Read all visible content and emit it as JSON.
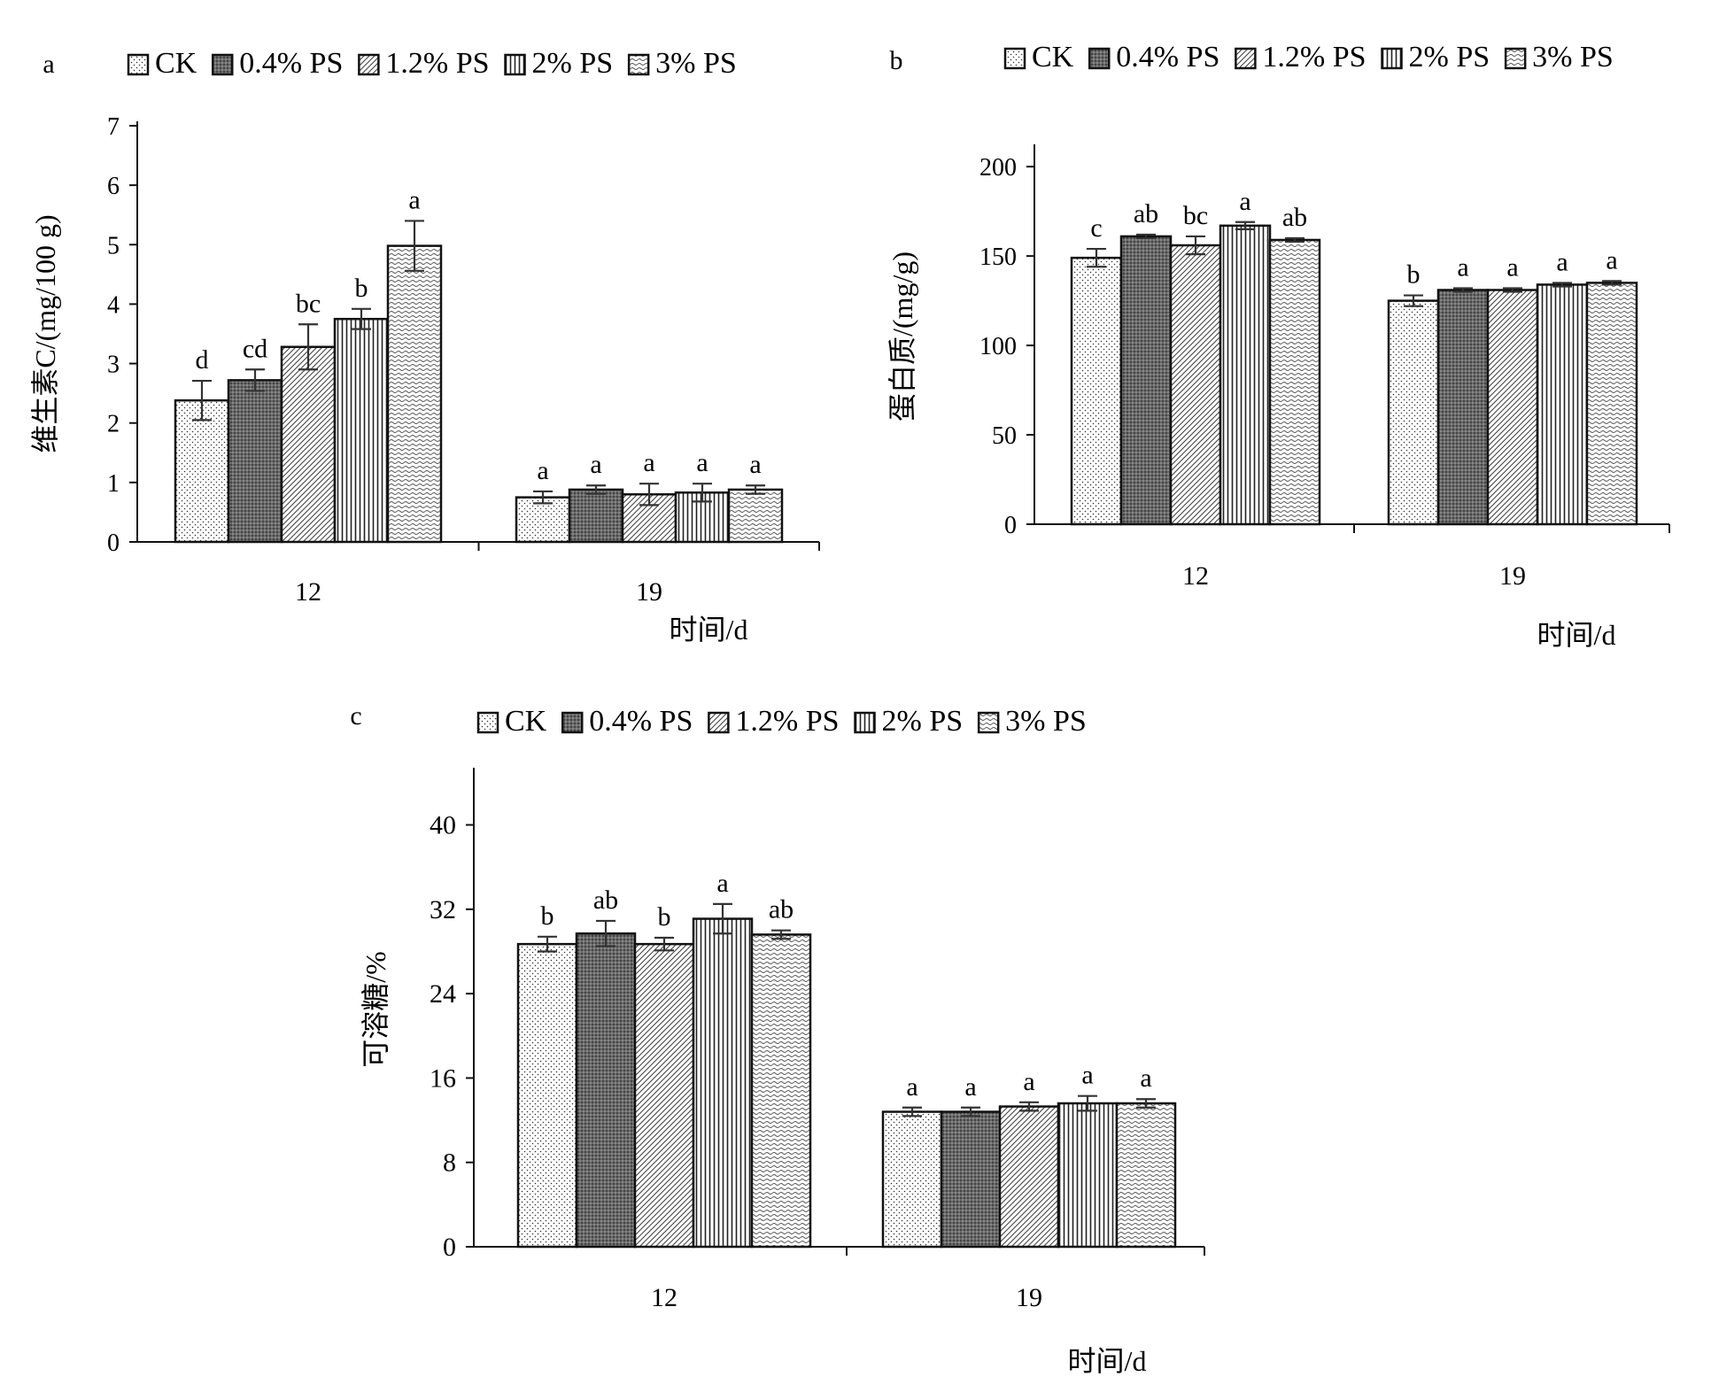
{
  "legend": [
    "CK",
    "0.4% PS",
    "1.2% PS",
    "2% PS",
    "3% PS"
  ],
  "chart_data": [
    {
      "type": "bar",
      "panel_label": "a",
      "title": "",
      "xlabel": "时间/d",
      "ylabel": "维生素C/(mg/100 g)",
      "categories": [
        "12",
        "19"
      ],
      "ylim": [
        0,
        7
      ],
      "yticks": [
        0,
        1,
        2,
        3,
        4,
        5,
        6,
        7
      ],
      "series": [
        {
          "name": "CK",
          "values": [
            2.38,
            0.75
          ],
          "errors": [
            0.33,
            0.1
          ],
          "letters": [
            "d",
            "a"
          ]
        },
        {
          "name": "0.4% PS",
          "values": [
            2.72,
            0.88
          ],
          "errors": [
            0.18,
            0.07
          ],
          "letters": [
            "cd",
            "a"
          ]
        },
        {
          "name": "1.2% PS",
          "values": [
            3.28,
            0.8
          ],
          "errors": [
            0.38,
            0.18
          ],
          "letters": [
            "bc",
            "a"
          ]
        },
        {
          "name": "2% PS",
          "values": [
            3.75,
            0.83
          ],
          "errors": [
            0.17,
            0.15
          ],
          "letters": [
            "b",
            "a"
          ]
        },
        {
          "name": "3% PS",
          "values": [
            4.98,
            0.88
          ],
          "errors": [
            0.42,
            0.07
          ],
          "letters": [
            "a",
            "a"
          ]
        }
      ]
    },
    {
      "type": "bar",
      "panel_label": "b",
      "title": "",
      "xlabel": "时间/d",
      "ylabel": "蛋白质/(mg/g)",
      "categories": [
        "12",
        "19"
      ],
      "ylim": [
        0,
        210
      ],
      "yticks": [
        0,
        50,
        100,
        150,
        200
      ],
      "series": [
        {
          "name": "CK",
          "values": [
            149,
            125
          ],
          "errors": [
            5,
            3
          ],
          "letters": [
            "c",
            "b"
          ]
        },
        {
          "name": "0.4% PS",
          "values": [
            161,
            131
          ],
          "errors": [
            1,
            1
          ],
          "letters": [
            "ab",
            "a"
          ]
        },
        {
          "name": "1.2% PS",
          "values": [
            156,
            131
          ],
          "errors": [
            5,
            1
          ],
          "letters": [
            "bc",
            "a"
          ]
        },
        {
          "name": "2% PS",
          "values": [
            167,
            134
          ],
          "errors": [
            2,
            1
          ],
          "letters": [
            "a",
            "a"
          ]
        },
        {
          "name": "3% PS",
          "values": [
            159,
            135
          ],
          "errors": [
            1,
            1
          ],
          "letters": [
            "ab",
            "a"
          ]
        }
      ]
    },
    {
      "type": "bar",
      "panel_label": "c",
      "title": "",
      "xlabel": "时间/d",
      "ylabel": "可溶糖/%",
      "categories": [
        "12",
        "19"
      ],
      "ylim": [
        0,
        45
      ],
      "yticks": [
        0,
        8,
        16,
        24,
        32,
        40
      ],
      "series": [
        {
          "name": "CK",
          "values": [
            28.7,
            12.8
          ],
          "errors": [
            0.7,
            0.4
          ],
          "letters": [
            "b",
            "a"
          ]
        },
        {
          "name": "0.4% PS",
          "values": [
            29.7,
            12.8
          ],
          "errors": [
            1.2,
            0.4
          ],
          "letters": [
            "ab",
            "a"
          ]
        },
        {
          "name": "1.2% PS",
          "values": [
            28.7,
            13.3
          ],
          "errors": [
            0.6,
            0.4
          ],
          "letters": [
            "b",
            "a"
          ]
        },
        {
          "name": "2% PS",
          "values": [
            31.1,
            13.6
          ],
          "errors": [
            1.4,
            0.7
          ],
          "letters": [
            "a",
            "a"
          ]
        },
        {
          "name": "3% PS",
          "values": [
            29.6,
            13.6
          ],
          "errors": [
            0.4,
            0.4
          ],
          "letters": [
            "ab",
            "a"
          ]
        }
      ]
    }
  ]
}
